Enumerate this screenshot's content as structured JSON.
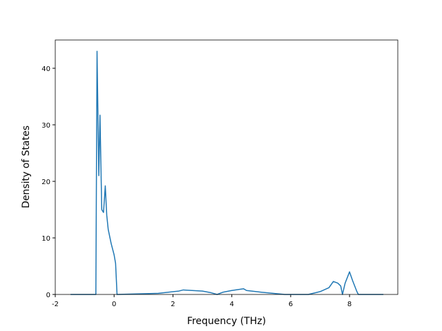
{
  "chart_data": {
    "type": "line",
    "x_label": "Frequency (THz)",
    "y_label": "Density of States",
    "x": [
      -1.48,
      -0.62,
      -0.58,
      -0.52,
      -0.48,
      -0.42,
      -0.36,
      -0.3,
      -0.25,
      -0.2,
      -0.1,
      0.0,
      0.05,
      0.1,
      1.5,
      2.2,
      2.35,
      3.0,
      3.3,
      3.5,
      3.7,
      4.0,
      4.4,
      4.5,
      5.0,
      5.8,
      6.6,
      7.0,
      7.3,
      7.45,
      7.6,
      7.7,
      7.76,
      7.85,
      8.0,
      8.1,
      8.25,
      8.3,
      9.15
    ],
    "series": [
      {
        "color": "#1f77b4",
        "values": [
          0,
          0,
          43,
          21,
          31.7,
          15,
          14.5,
          19.2,
          14,
          11.5,
          9,
          7,
          5.5,
          0,
          0.2,
          0.6,
          0.8,
          0.6,
          0.3,
          0,
          0.4,
          0.7,
          1.0,
          0.7,
          0.4,
          0,
          0,
          0.5,
          1.2,
          2.3,
          2.0,
          1.5,
          0,
          2.0,
          4.0,
          2.5,
          0.5,
          0,
          0
        ]
      }
    ],
    "xlim": [
      -2,
      9.64
    ],
    "ylim": [
      0,
      45
    ],
    "xticks": [
      -2,
      0,
      2,
      4,
      6,
      8
    ],
    "yticks": [
      0,
      10,
      20,
      30,
      40
    ]
  }
}
